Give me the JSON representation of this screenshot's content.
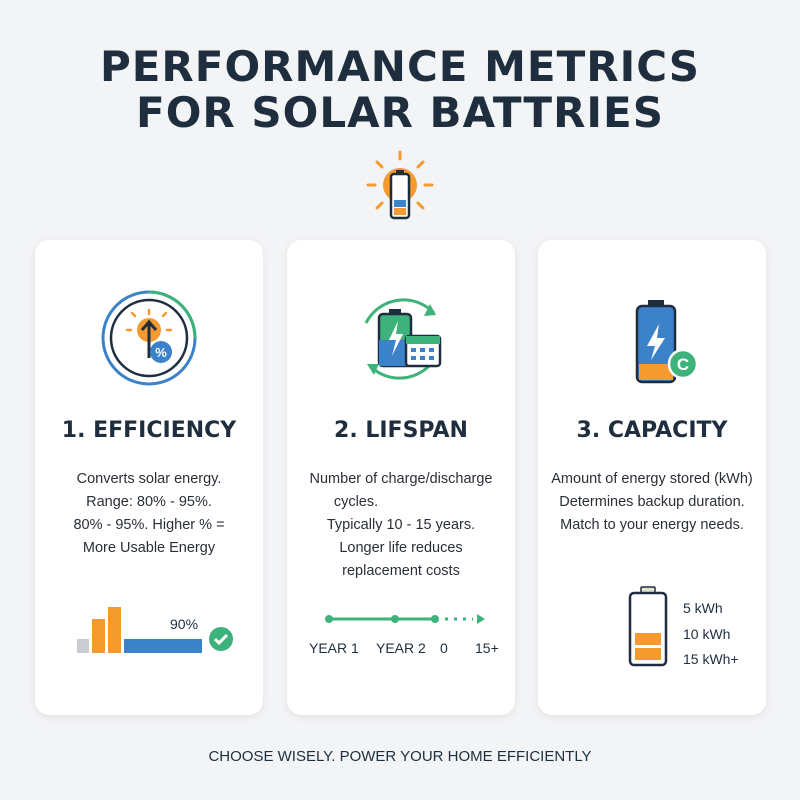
{
  "title": {
    "line1": "PERFORMANCE METRICS",
    "line2": "FOR SOLAR BATTRIES"
  },
  "cards": [
    {
      "heading": "1. EFFICIENCY",
      "lines": [
        "Converts solar energy.",
        "Range: 80% - 95%.",
        "80% - 95%. Higher % =",
        "More Usable Energy"
      ],
      "bar_label": "90%",
      "efficiency_percent": 90
    },
    {
      "heading": "2. LIFSPAN",
      "lines": [
        "Number of charge/discharge",
        "cycles.",
        "Typically 10 - 15 years.",
        "Longer life reduces",
        "replacement costs"
      ],
      "timeline": [
        "YEAR 1",
        "YEAR 2",
        "0",
        "15+"
      ]
    },
    {
      "heading": "3. CAPACITY",
      "lines": [
        "Amount of energy stored (kWh)",
        "Determines backup duration.",
        "Match to your energy needs."
      ],
      "levels": [
        "5 kWh",
        "10 kWh",
        "15 kWh+"
      ]
    }
  ],
  "footer": "CHOOSE WISELY. POWER YOUR HOME EFFICIENTLY",
  "colors": {
    "orange": "#f59a2f",
    "blue": "#3b82c8",
    "green": "#3db27a",
    "dark": "#1e2e3e"
  }
}
